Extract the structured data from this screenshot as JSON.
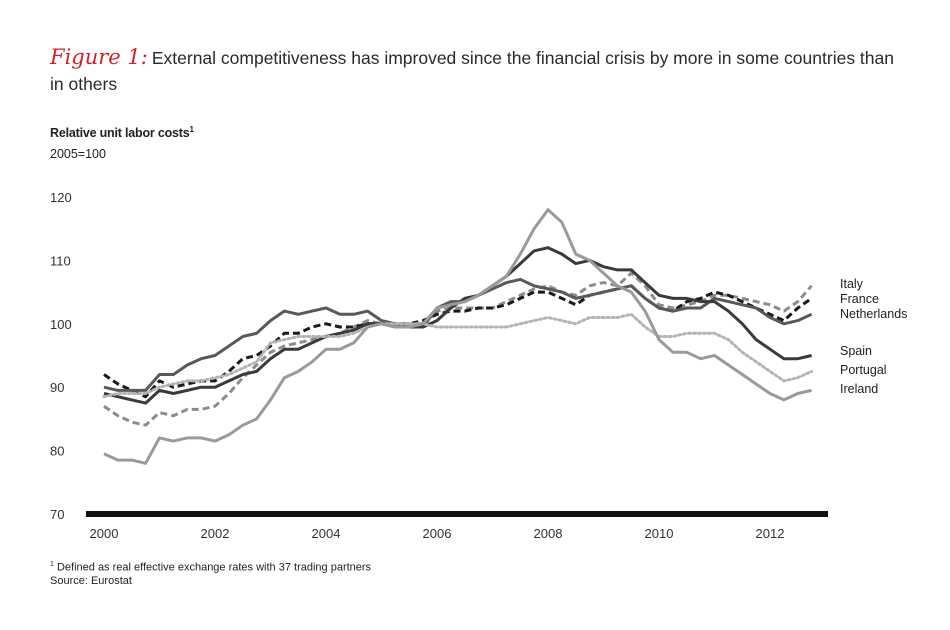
{
  "header": {
    "figure_label": "Figure 1:",
    "title": "External competitiveness has improved since the financial crisis by more in some countries than in others"
  },
  "footer": {
    "footnote_marker": "1",
    "footnote": "Defined as real effective exchange rates with 37 trading partners",
    "source": "Source: Eurostat"
  },
  "colors": {
    "accent": "#d2232a"
  },
  "chart_data": {
    "type": "line",
    "ylabel": "Relative unit labor costs",
    "ylabel_footnote": "1",
    "ylabel_sub": "2005=100",
    "xlabel": "",
    "ylim": [
      70,
      120
    ],
    "yticks": [
      70,
      80,
      90,
      100,
      110,
      120
    ],
    "xlim": [
      2000,
      2013
    ],
    "xticks": [
      2000,
      2002,
      2004,
      2006,
      2008,
      2010,
      2012
    ],
    "grid": false,
    "legend": "inline labels at right end of lines",
    "x": [
      2000.0,
      2000.25,
      2000.5,
      2000.75,
      2001.0,
      2001.25,
      2001.5,
      2001.75,
      2002.0,
      2002.25,
      2002.5,
      2002.75,
      2003.0,
      2003.25,
      2003.5,
      2003.75,
      2004.0,
      2004.25,
      2004.5,
      2004.75,
      2005.0,
      2005.25,
      2005.5,
      2005.75,
      2006.0,
      2006.25,
      2006.5,
      2006.75,
      2007.0,
      2007.25,
      2007.5,
      2007.75,
      2008.0,
      2008.25,
      2008.5,
      2008.75,
      2009.0,
      2009.25,
      2009.5,
      2009.75,
      2010.0,
      2010.25,
      2010.5,
      2010.75,
      2011.0,
      2011.25,
      2011.5,
      2011.75,
      2012.0,
      2012.25,
      2012.5,
      2012.75
    ],
    "series": [
      {
        "name": "Italy",
        "style": "dashed",
        "color": "#8c8c8c",
        "values": [
          87,
          85.5,
          84.5,
          84,
          86,
          85.5,
          86.5,
          86.5,
          87,
          89,
          91.5,
          93.5,
          95.5,
          96.5,
          97,
          97.5,
          98,
          98.5,
          99.5,
          100.5,
          100,
          100,
          100,
          100,
          102,
          102.5,
          102.5,
          102.5,
          102.5,
          103.5,
          104.5,
          105.5,
          106,
          105,
          104.5,
          106,
          106.5,
          106,
          108,
          106,
          103,
          102.5,
          103,
          103.5,
          104.5,
          104.5,
          104,
          103.5,
          103,
          102,
          103.5,
          106
        ]
      },
      {
        "name": "France",
        "style": "dashed",
        "color": "#1a1a1a",
        "values": [
          92,
          90.5,
          89.5,
          88.5,
          91,
          90,
          90.5,
          91,
          91,
          92.5,
          94.5,
          95,
          96.5,
          98.5,
          98.5,
          99.5,
          100,
          99.5,
          99.5,
          100,
          100,
          100,
          100,
          100.5,
          101.5,
          102,
          102,
          102.5,
          102.5,
          103,
          104,
          105,
          105,
          104,
          103,
          104.5,
          105,
          105.5,
          106,
          104,
          102.5,
          102,
          103.5,
          104,
          105,
          104.5,
          103.5,
          102.5,
          101.5,
          100.5,
          102.5,
          104
        ]
      },
      {
        "name": "Netherlands",
        "style": "solid",
        "color": "#595959",
        "values": [
          90,
          89.5,
          89.5,
          89.5,
          92,
          92,
          93.5,
          94.5,
          95,
          96.5,
          98,
          98.5,
          100.5,
          102,
          101.5,
          102,
          102.5,
          101.5,
          101.5,
          102,
          100.5,
          100,
          99.5,
          99.5,
          102.5,
          103.5,
          103.5,
          104.5,
          105.5,
          106.5,
          107,
          106,
          105.5,
          105,
          104,
          104.5,
          105,
          105.5,
          106,
          104,
          102.5,
          102,
          102.5,
          102.5,
          104,
          103.5,
          103,
          102.5,
          101,
          100,
          100.5,
          101.5
        ]
      },
      {
        "name": "Spain",
        "style": "solid",
        "color": "#3a3a3a",
        "values": [
          89,
          88.5,
          88,
          87.5,
          89.5,
          89,
          89.5,
          90,
          90,
          91,
          92,
          92.5,
          94.5,
          96,
          96,
          97,
          98,
          98.5,
          99,
          100,
          100,
          99.5,
          99.5,
          99.5,
          100.5,
          102.5,
          104,
          104.5,
          106,
          107.5,
          109.5,
          111.5,
          112,
          111,
          109.5,
          110,
          109,
          108.5,
          108.5,
          106.5,
          104.5,
          104,
          104,
          103.5,
          103.5,
          102,
          100,
          97.5,
          96,
          94.5,
          94.5,
          95
        ]
      },
      {
        "name": "Portugal",
        "style": "dotted",
        "color": "#b4b4b4",
        "values": [
          88.5,
          89,
          89,
          89,
          90,
          90.5,
          91,
          91,
          91.5,
          92,
          93,
          94,
          97,
          97.5,
          98,
          98,
          98,
          98,
          98.5,
          99.5,
          100,
          100,
          100,
          100,
          99.5,
          99.5,
          99.5,
          99.5,
          99.5,
          99.5,
          100,
          100.5,
          101,
          100.5,
          100,
          101,
          101,
          101,
          101.5,
          99.5,
          98,
          98,
          98.5,
          98.5,
          98.5,
          97.5,
          95.5,
          94,
          92.5,
          91,
          91.5,
          92.5
        ]
      },
      {
        "name": "Ireland",
        "style": "solid",
        "color": "#9a9a9a",
        "values": [
          79.5,
          78.5,
          78.5,
          78,
          82,
          81.5,
          82,
          82,
          81.5,
          82.5,
          84,
          85,
          88,
          91.5,
          92.5,
          94,
          96,
          96,
          97,
          99.5,
          100,
          99.5,
          99.5,
          100,
          102.5,
          103,
          103.5,
          104.5,
          106,
          107.5,
          111,
          115,
          118,
          116,
          111,
          110,
          108,
          106,
          105,
          102,
          97.5,
          95.5,
          95.5,
          94.5,
          95,
          93.5,
          92,
          90.5,
          89,
          88,
          89,
          89.5
        ]
      }
    ]
  }
}
